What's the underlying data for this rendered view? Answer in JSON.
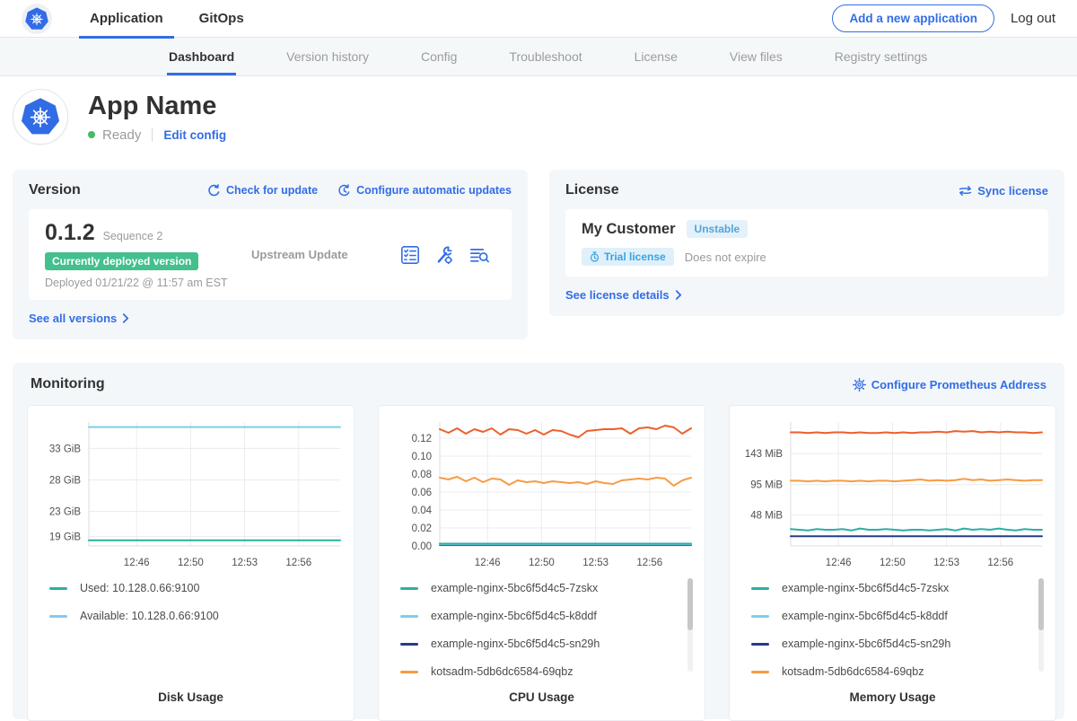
{
  "colors": {
    "accent_blue": "#326de6",
    "green_badge": "#44c08c",
    "ready_green": "#44bb66",
    "k8s_blue": "#326ce5"
  },
  "topnav": {
    "tabs": [
      {
        "label": "Application"
      },
      {
        "label": "GitOps"
      }
    ],
    "add_app_button": "Add a new application",
    "logout": "Log out"
  },
  "subnav": {
    "tabs": [
      "Dashboard",
      "Version history",
      "Config",
      "Troubleshoot",
      "License",
      "View files",
      "Registry settings"
    ]
  },
  "app_header": {
    "title": "App Name",
    "status": "Ready",
    "edit_config": "Edit config"
  },
  "version_card": {
    "title": "Version",
    "check_for_update": "Check for update",
    "configure_auto_updates": "Configure automatic updates",
    "version_number": "0.1.2",
    "sequence": "Sequence 2",
    "deployed_badge": "Currently deployed version",
    "deployed_at": "Deployed 01/21/22 @ 11:57 am EST",
    "upstream": "Upstream Update",
    "see_all_versions": "See all versions"
  },
  "license_card": {
    "title": "License",
    "sync_license": "Sync license",
    "customer_name": "My Customer",
    "channel_badge": "Unstable",
    "trial_badge": "Trial license",
    "expiry": "Does not expire",
    "see_details": "See license details"
  },
  "monitoring": {
    "title": "Monitoring",
    "configure_link": "Configure Prometheus Address"
  },
  "chart_data": [
    {
      "type": "line",
      "title": "Disk Usage",
      "ylim": [
        17.5,
        37.2
      ],
      "yticks": [
        {
          "value": 33,
          "label": "33 GiB"
        },
        {
          "value": 28,
          "label": "28 GiB"
        },
        {
          "value": 23,
          "label": "23 GiB"
        },
        {
          "value": 19,
          "label": "19 GiB"
        }
      ],
      "xticks": [
        "12:46",
        "12:50",
        "12:53",
        "12:56"
      ],
      "xtick_positions": [
        0.19,
        0.405,
        0.62,
        0.835
      ],
      "series": [
        {
          "name": "Available: 10.128.0.66:9100",
          "color": "#7acfec",
          "values": [
            36.4,
            36.4
          ]
        },
        {
          "name": "Used: 10.128.0.66:9100",
          "color": "#2bafa5",
          "values": [
            18.4,
            18.4
          ]
        }
      ],
      "legend": [
        {
          "label": "Used: 10.128.0.66:9100",
          "color": "#2bafa5"
        },
        {
          "label": "Available: 10.128.0.66:9100",
          "color": "#7acfec"
        }
      ],
      "has_scrollbar": false
    },
    {
      "type": "line",
      "title": "CPU Usage",
      "ylim": [
        0,
        0.138
      ],
      "yticks": [
        {
          "value": 0.12,
          "label": "0.12"
        },
        {
          "value": 0.1,
          "label": "0.10"
        },
        {
          "value": 0.08,
          "label": "0.08"
        },
        {
          "value": 0.06,
          "label": "0.06"
        },
        {
          "value": 0.04,
          "label": "0.04"
        },
        {
          "value": 0.02,
          "label": "0.02"
        },
        {
          "value": 0.0,
          "label": "0.00"
        }
      ],
      "xticks": [
        "12:46",
        "12:50",
        "12:53",
        "12:56"
      ],
      "xtick_positions": [
        0.19,
        0.405,
        0.62,
        0.835
      ],
      "series": [
        {
          "name": "example-nginx-5bc6f5d4c5-sn29h",
          "color": "#233d85",
          "values": [
            0.001,
            0.001
          ]
        },
        {
          "name": "example-nginx-5bc6f5d4c5-k8ddf",
          "color": "#7acfec",
          "values": [
            0.0018,
            0.0018
          ]
        },
        {
          "name": "example-nginx-5bc6f5d4c5-7zskx",
          "color": "#2bafa5",
          "values": [
            0.0025,
            0.0025
          ]
        },
        {
          "name": "kotsadm-5db6dc6584-69qbz",
          "color": "#f79b43",
          "values": [
            0.076,
            0.074,
            0.077,
            0.072,
            0.076,
            0.071,
            0.075,
            0.074,
            0.068,
            0.073,
            0.071,
            0.072,
            0.07,
            0.072,
            0.071,
            0.07,
            0.071,
            0.069,
            0.072,
            0.07,
            0.069,
            0.073,
            0.074,
            0.075,
            0.074,
            0.076,
            0.075,
            0.067,
            0.073,
            0.076
          ]
        },
        {
          "name": null,
          "color": "#ed5f2c",
          "values": [
            0.13,
            0.126,
            0.131,
            0.125,
            0.13,
            0.127,
            0.131,
            0.124,
            0.13,
            0.129,
            0.125,
            0.129,
            0.124,
            0.129,
            0.128,
            0.124,
            0.121,
            0.128,
            0.129,
            0.13,
            0.13,
            0.131,
            0.125,
            0.131,
            0.132,
            0.13,
            0.134,
            0.132,
            0.125,
            0.131
          ]
        }
      ],
      "legend": [
        {
          "label": "example-nginx-5bc6f5d4c5-7zskx",
          "color": "#2bafa5"
        },
        {
          "label": "example-nginx-5bc6f5d4c5-k8ddf",
          "color": "#7acfec"
        },
        {
          "label": "example-nginx-5bc6f5d4c5-sn29h",
          "color": "#233d85"
        },
        {
          "label": "kotsadm-5db6dc6584-69qbz",
          "color": "#f79b43"
        }
      ],
      "has_scrollbar": true
    },
    {
      "type": "line",
      "title": "Memory Usage",
      "ylim": [
        0,
        192
      ],
      "yticks": [
        {
          "value": 143,
          "label": "143 MiB"
        },
        {
          "value": 95,
          "label": "95 MiB"
        },
        {
          "value": 48,
          "label": "48 MiB"
        }
      ],
      "xticks": [
        "12:46",
        "12:50",
        "12:53",
        "12:56"
      ],
      "xtick_positions": [
        0.19,
        0.405,
        0.62,
        0.835
      ],
      "series": [
        {
          "name": "example-nginx-5bc6f5d4c5-sn29h",
          "color": "#233d85",
          "values": [
            15,
            15
          ]
        },
        {
          "name": "example-nginx-5bc6f5d4c5-7zskx",
          "color": "#2bafa5",
          "values": [
            26,
            25,
            24,
            26,
            25,
            25,
            26,
            24,
            27,
            25,
            25,
            26,
            25,
            24,
            25,
            25,
            24,
            25,
            26,
            24,
            27,
            25,
            26,
            25,
            27,
            25,
            24,
            26,
            25,
            25
          ]
        },
        {
          "name": "kotsadm-5db6dc6584-69qbz",
          "color": "#f79b43",
          "values": [
            101,
            101,
            100,
            101,
            100,
            101,
            101,
            100,
            101,
            100,
            101,
            101,
            100,
            101,
            102,
            103,
            101,
            102,
            101,
            102,
            104,
            102,
            103,
            101,
            102,
            103,
            102,
            101,
            102,
            102
          ]
        },
        {
          "name": null,
          "color": "#ed5f2c",
          "values": [
            176,
            176,
            175,
            176,
            175,
            176,
            176,
            175,
            176,
            175,
            175,
            176,
            175,
            176,
            175,
            176,
            176,
            177,
            176,
            178,
            177,
            178,
            176,
            177,
            176,
            177,
            176,
            176,
            175,
            176
          ]
        }
      ],
      "legend": [
        {
          "label": "example-nginx-5bc6f5d4c5-7zskx",
          "color": "#2bafa5"
        },
        {
          "label": "example-nginx-5bc6f5d4c5-k8ddf",
          "color": "#7acfec"
        },
        {
          "label": "example-nginx-5bc6f5d4c5-sn29h",
          "color": "#233d85"
        },
        {
          "label": "kotsadm-5db6dc6584-69qbz",
          "color": "#f79b43"
        }
      ],
      "has_scrollbar": true
    }
  ]
}
